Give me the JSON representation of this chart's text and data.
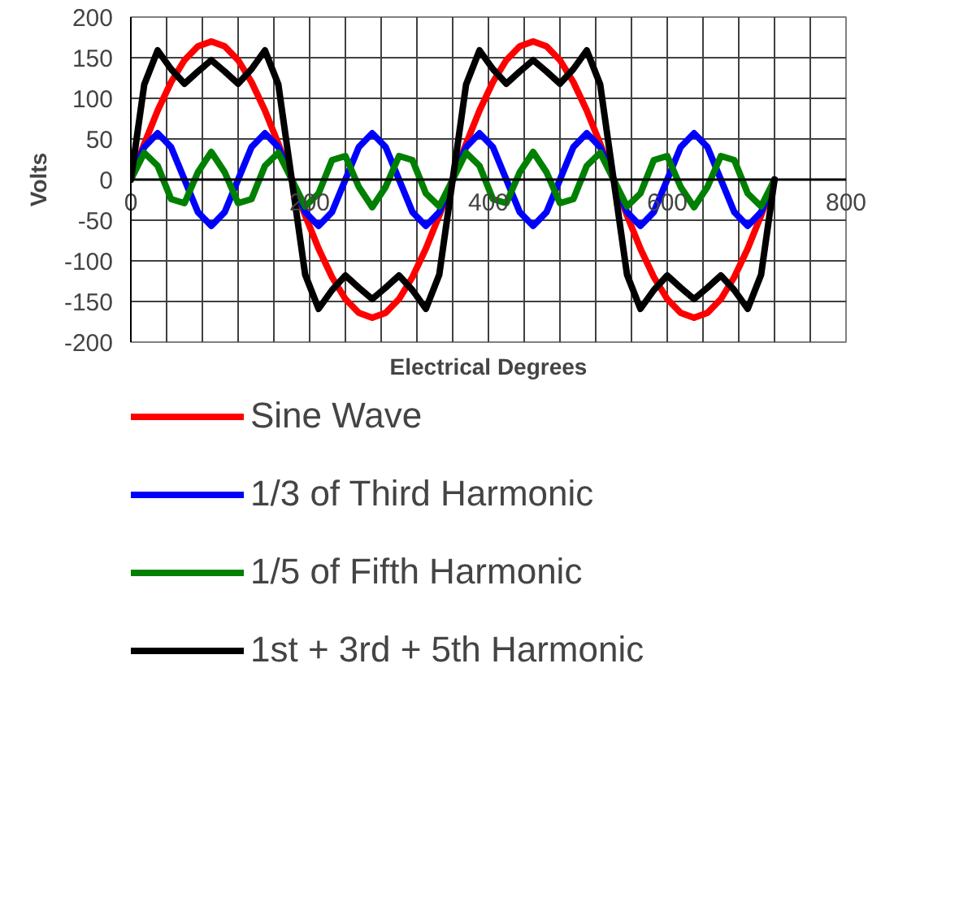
{
  "chart_data": {
    "type": "line",
    "xlabel": "Electrical Degrees",
    "ylabel": "Volts",
    "x": [
      0,
      15,
      30,
      45,
      60,
      75,
      90,
      105,
      120,
      135,
      150,
      165,
      180,
      195,
      210,
      225,
      240,
      255,
      270,
      285,
      300,
      315,
      330,
      345,
      360,
      375,
      390,
      405,
      420,
      435,
      450,
      465,
      480,
      495,
      510,
      525,
      540,
      555,
      570,
      585,
      600,
      615,
      630,
      645,
      660,
      675,
      690,
      705,
      720
    ],
    "series": [
      {
        "name": "Sine Wave",
        "color": "#ff0000",
        "values": [
          0,
          44,
          85,
          120,
          147,
          164,
          170,
          164,
          147,
          120,
          85,
          44,
          0,
          -44,
          -85,
          -120,
          -147,
          -164,
          -170,
          -164,
          -147,
          -120,
          -85,
          -44,
          0,
          44,
          85,
          120,
          147,
          164,
          170,
          164,
          147,
          120,
          85,
          44,
          0,
          -44,
          -85,
          -120,
          -147,
          -164,
          -170,
          -164,
          -147,
          -120,
          -85,
          -44,
          0
        ]
      },
      {
        "name": "1/3 of Third Harmonic",
        "color": "#0000ff",
        "values": [
          0,
          40,
          57,
          40,
          0,
          -40,
          -57,
          -40,
          0,
          40,
          57,
          40,
          0,
          -40,
          -57,
          -40,
          0,
          40,
          57,
          40,
          0,
          -40,
          -57,
          -40,
          0,
          40,
          57,
          40,
          0,
          -40,
          -57,
          -40,
          0,
          40,
          57,
          40,
          0,
          -40,
          -57,
          -40,
          0,
          40,
          57,
          40,
          0,
          -40,
          -57,
          -40,
          0
        ]
      },
      {
        "name": "1/5 of Fifth Harmonic",
        "color": "#008000",
        "values": [
          0,
          33,
          17,
          -24,
          -29,
          9,
          34,
          9,
          -29,
          -24,
          17,
          33,
          0,
          -33,
          -17,
          24,
          29,
          -9,
          -34,
          -9,
          29,
          24,
          -17,
          -33,
          0,
          33,
          17,
          -24,
          -29,
          9,
          34,
          9,
          -29,
          -24,
          17,
          33,
          0,
          -33,
          -17,
          24,
          29,
          -9,
          -34,
          -9,
          29,
          24,
          -17,
          -33,
          0
        ]
      },
      {
        "name": "1st + 3rd + 5th Harmonic",
        "color": "#000000",
        "values": [
          0,
          117,
          159,
          136,
          118,
          133,
          147,
          133,
          118,
          136,
          159,
          117,
          0,
          -117,
          -159,
          -136,
          -118,
          -133,
          -147,
          -133,
          -118,
          -136,
          -159,
          -117,
          0,
          117,
          159,
          136,
          118,
          133,
          147,
          133,
          118,
          136,
          159,
          117,
          0,
          -117,
          -159,
          -136,
          -118,
          -133,
          -147,
          -133,
          -118,
          -136,
          -159,
          -117,
          0
        ]
      }
    ],
    "xlim": [
      0,
      800
    ],
    "ylim": [
      -200,
      200
    ],
    "xticks": [
      0,
      200,
      400,
      600,
      800
    ],
    "yticks": [
      -200,
      -150,
      -100,
      -50,
      0,
      50,
      100,
      150,
      200
    ],
    "grid": true,
    "legend": "bottom",
    "marker": "none",
    "line_style": "solid"
  }
}
